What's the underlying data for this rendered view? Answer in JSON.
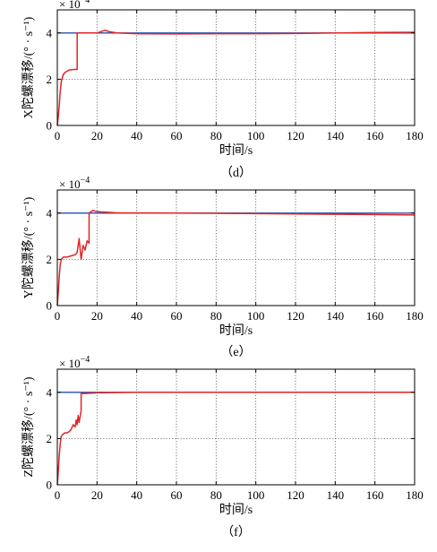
{
  "chart_data": [
    {
      "type": "line",
      "caption": "（d）",
      "title": "",
      "xlabel": "时间/s",
      "ylabel": "X陀螺漂移/(° · s⁻¹)",
      "y_multiplier_base": "× 10",
      "y_multiplier_exp": "−4",
      "xlim": [
        0,
        180
      ],
      "ylim": [
        0,
        5
      ],
      "xticks": [
        0,
        20,
        40,
        60,
        80,
        100,
        120,
        140,
        160,
        180
      ],
      "yticks": [
        0,
        2,
        4
      ],
      "grid": true,
      "series": [
        {
          "color": "#2a4fb5",
          "x": [
            0,
            180
          ],
          "y": [
            4,
            4
          ]
        },
        {
          "color": "#e02424",
          "x": [
            0,
            0.5,
            1,
            1.5,
            2,
            3,
            4,
            5,
            6,
            8,
            10,
            10.01,
            20,
            24,
            26,
            30,
            40,
            60,
            80,
            100,
            120,
            140,
            160,
            180
          ],
          "y": [
            0,
            0.4,
            0.9,
            1.5,
            1.9,
            2.2,
            2.3,
            2.35,
            2.4,
            2.42,
            2.42,
            4.0,
            4.0,
            4.12,
            4.06,
            4.0,
            3.97,
            3.96,
            3.97,
            3.97,
            3.98,
            4.0,
            4.02,
            4.03
          ]
        }
      ]
    },
    {
      "type": "line",
      "caption": "（e）",
      "title": "",
      "xlabel": "时间/s",
      "ylabel": "Y陀螺漂移/(° · s⁻¹)",
      "y_multiplier_base": "× 10",
      "y_multiplier_exp": "−4",
      "xlim": [
        0,
        180
      ],
      "ylim": [
        0,
        5
      ],
      "xticks": [
        0,
        20,
        40,
        60,
        80,
        100,
        120,
        140,
        160,
        180
      ],
      "yticks": [
        0,
        2,
        4
      ],
      "grid": true,
      "series": [
        {
          "color": "#2a4fb5",
          "x": [
            0,
            180
          ],
          "y": [
            4,
            4
          ]
        },
        {
          "color": "#e02424",
          "x": [
            0,
            0.5,
            1,
            1.5,
            2,
            3,
            5,
            7,
            9,
            10,
            11,
            12,
            13,
            14,
            15,
            16,
            16.01,
            18,
            19,
            22,
            30,
            60,
            100,
            140,
            180
          ],
          "y": [
            0,
            0.6,
            1.3,
            1.8,
            2.0,
            2.1,
            2.1,
            2.15,
            2.2,
            2.3,
            2.9,
            2.0,
            2.6,
            2.4,
            2.8,
            2.7,
            4.0,
            4.12,
            4.08,
            4.05,
            4.01,
            4.0,
            3.98,
            3.95,
            3.92
          ]
        }
      ]
    },
    {
      "type": "line",
      "caption": "（f）",
      "title": "",
      "xlabel": "时间/s",
      "ylabel": "Z陀螺漂移/(° · s⁻¹)",
      "y_multiplier_base": "× 10",
      "y_multiplier_exp": "−4",
      "xlim": [
        0,
        180
      ],
      "ylim": [
        0,
        5
      ],
      "xticks": [
        0,
        20,
        40,
        60,
        80,
        100,
        120,
        140,
        160,
        180
      ],
      "yticks": [
        0,
        2,
        4
      ],
      "grid": true,
      "series": [
        {
          "color": "#2a4fb5",
          "x": [
            0,
            180
          ],
          "y": [
            4,
            4
          ]
        },
        {
          "color": "#e02424",
          "x": [
            0,
            0.5,
            1,
            1.5,
            2,
            3,
            4,
            5,
            6,
            7,
            8,
            9,
            9.5,
            10,
            10.5,
            11,
            12,
            12.01,
            14,
            20,
            40,
            100,
            180
          ],
          "y": [
            0,
            0.6,
            1.3,
            1.8,
            2.1,
            2.2,
            2.25,
            2.25,
            2.3,
            2.4,
            2.6,
            2.5,
            2.8,
            2.6,
            3.0,
            2.7,
            3.2,
            3.95,
            3.95,
            3.98,
            4.0,
            4.0,
            4.0
          ]
        }
      ]
    }
  ]
}
